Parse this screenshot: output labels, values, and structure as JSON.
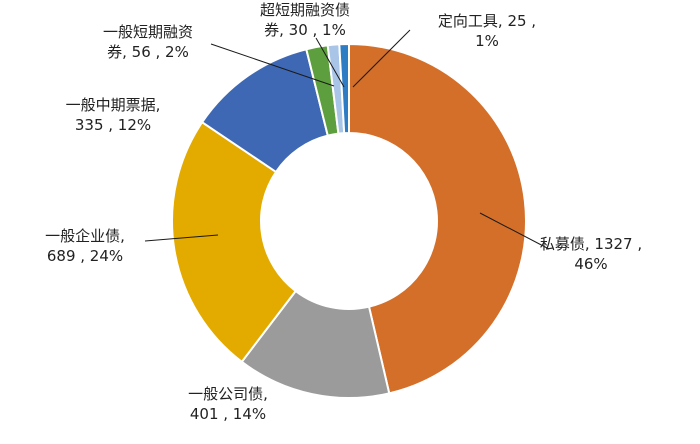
{
  "chart_data": {
    "type": "pie",
    "variant": "donut",
    "title": "",
    "legend": "none",
    "start_angle_deg": 0,
    "direction": "clockwise",
    "slices": [
      {
        "name": "私募债",
        "value": 1327,
        "percent": "46%",
        "label_line1": "私募债, 1327 ,",
        "label_line2": "46%",
        "color": "#D46F2A"
      },
      {
        "name": "一般公司债",
        "value": 401,
        "percent": "14%",
        "label_line1": "一般公司债,",
        "label_line2": "401 , 14%",
        "color": "#9B9B9B"
      },
      {
        "name": "一般企业债",
        "value": 689,
        "percent": "24%",
        "label_line1": "一般企业债,",
        "label_line2": "689 , 24%",
        "color": "#E3AA00"
      },
      {
        "name": "一般中期票据",
        "value": 335,
        "percent": "12%",
        "label_line1": "一般中期票据,",
        "label_line2": "335 , 12%",
        "color": "#3E68B4"
      },
      {
        "name": "一般短期融资券",
        "value": 56,
        "percent": "2%",
        "label_line1": "一般短期融资",
        "label_line2": "券, 56 , 2%",
        "color": "#5D9F3E"
      },
      {
        "name": "超短期融资债",
        "value": 30,
        "percent": "1%",
        "label_line1": "超短期融资债",
        "label_line2": "券, 30 , 1%",
        "color": "#A8C5E8"
      },
      {
        "name": "定向工具",
        "value": 25,
        "percent": "1%",
        "label_line1": "定向工具, 25 ,",
        "label_line2": "1%",
        "color": "#2E7CC4"
      }
    ]
  }
}
